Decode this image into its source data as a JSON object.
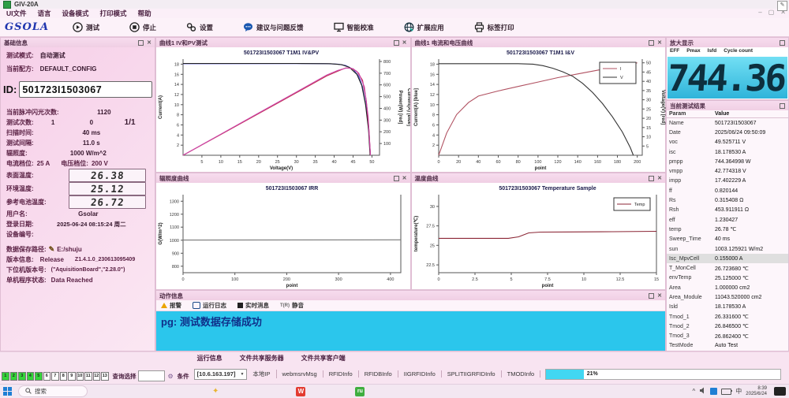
{
  "window": {
    "title": "GIV-20A",
    "controls": [
      "–",
      "▢",
      "✕"
    ]
  },
  "menu": {
    "items": [
      "UI文件",
      "语言",
      "设备模式",
      "打印模式",
      "帮助"
    ]
  },
  "toolbar": {
    "brand": "GSOLA",
    "buttons": [
      {
        "label": "测试"
      },
      {
        "label": "停止"
      },
      {
        "label": "设置"
      },
      {
        "label": "建议与问题反馈"
      },
      {
        "label": "智能校准"
      },
      {
        "label": "扩展应用"
      },
      {
        "label": "标签打印"
      }
    ]
  },
  "left": {
    "title": "基础信息",
    "test_mode": {
      "label": "测试模式:",
      "value": "自动测试"
    },
    "config": {
      "label": "当前配方:",
      "value": "DEFAULT_CONFIG"
    },
    "id": {
      "label": "ID:",
      "value": "501723I1503067"
    },
    "flash_count": {
      "label": "当前脉冲闪光次数:",
      "value": "1120"
    },
    "test_count": {
      "label": "测试次数:",
      "v1": "1",
      "v2": "0",
      "v3": "1/1"
    },
    "scan_time": {
      "label": "扫描时间:",
      "value": "40 ms"
    },
    "interval": {
      "label": "测试间隔:",
      "value": "11.0 s"
    },
    "irradiance": {
      "label": "辐照度:",
      "value": "1000 W/m^2"
    },
    "current_range": {
      "label": "电流档位:",
      "value": "25 A"
    },
    "voltage_range": {
      "label": "电压档位:",
      "value": "200 V"
    },
    "surface_temp": {
      "label": "表面温度:",
      "value": "26.38"
    },
    "ambient_temp": {
      "label": "环境温度:",
      "value": "25.12"
    },
    "ref_cell_temp": {
      "label": "参考电池温度:",
      "value": "26.72"
    },
    "username": {
      "label": "用户名:",
      "value": "Gsolar"
    },
    "login_date": {
      "label": "登录日期:",
      "value": "2025-06-24 08:15:24 周二"
    },
    "device_no": {
      "label": "设备编号:",
      "value": ""
    },
    "save_path": {
      "label": "数据保存路径:",
      "value": "E:/shuju"
    },
    "version": {
      "label": "版本信息:",
      "value": "Release",
      "value2": "Z1.4.1.0_230613095409"
    },
    "firmware": {
      "label": "下位机版本号:",
      "value": "(\"AquisitionBoard\",\"2.28.0\")"
    },
    "status": {
      "label": "单机程序状态:",
      "value": "Data Reached"
    }
  },
  "panels": {
    "chart1": "曲线1 IV和PV测试",
    "chart2": "曲线1 电流和电压曲线",
    "chart3": "辐照度曲线",
    "chart4": "温度曲线",
    "action": "动作信息",
    "magnify": "放大显示",
    "results": "当前测试结果"
  },
  "action": {
    "tools": [
      {
        "label": "报警"
      },
      {
        "label": "运行日志"
      },
      {
        "label": "实时消息"
      },
      {
        "label": "静音"
      }
    ],
    "message": "pg: 测试数据存储成功"
  },
  "magnify": {
    "metrics": [
      "EFF",
      "Pmax",
      "Isfd",
      "Cycle count"
    ],
    "value": "744.36"
  },
  "results": {
    "col_param": "Param",
    "col_value": "Value",
    "rows": [
      {
        "p": "Name",
        "v": "501723I1503067"
      },
      {
        "p": "Date",
        "v": "2025/06/24 09:50:09"
      },
      {
        "p": "voc",
        "v": "49.525711 V"
      },
      {
        "p": "isc",
        "v": "18.178530 A"
      },
      {
        "p": "pmpp",
        "v": "744.364998 W"
      },
      {
        "p": "vmpp",
        "v": "42.774318 V"
      },
      {
        "p": "impp",
        "v": "17.402229 A"
      },
      {
        "p": "ff",
        "v": "0.820144"
      },
      {
        "p": "Rs",
        "v": "0.315408 Ω"
      },
      {
        "p": "Rsh",
        "v": "453.911911 Ω"
      },
      {
        "p": "eff",
        "v": "1.230427"
      },
      {
        "p": "temp",
        "v": "26.78 ℃"
      },
      {
        "p": "Sweep_Time",
        "v": "40 ms"
      },
      {
        "p": "sun",
        "v": "1003.125921 W/m2"
      },
      {
        "p": "Isc_MpvCell",
        "v": "0.155000 A",
        "hl": true
      },
      {
        "p": "T_MonCell",
        "v": "26.723680 ℃"
      },
      {
        "p": "envTemp",
        "v": "25.125000 ℃"
      },
      {
        "p": "Area",
        "v": "1.000000 cm2"
      },
      {
        "p": "Area_Module",
        "v": "11043.520000 cm2"
      },
      {
        "p": "Isld",
        "v": "18.178530 A"
      },
      {
        "p": "Tmod_1",
        "v": "26.331600 ℃"
      },
      {
        "p": "Tmod_2",
        "v": "26.846500 ℃"
      },
      {
        "p": "Tmod_3",
        "v": "26.862400 ℃"
      },
      {
        "p": "TestMode",
        "v": "Auto Test"
      }
    ]
  },
  "bottom": {
    "segments": [
      {
        "n": "1",
        "on": true
      },
      {
        "n": "2",
        "on": true
      },
      {
        "n": "3",
        "on": true
      },
      {
        "n": "4",
        "on": true
      },
      {
        "n": "5",
        "on": true
      },
      {
        "n": "6"
      },
      {
        "n": "7"
      },
      {
        "n": "8"
      },
      {
        "n": "9"
      },
      {
        "n": "10"
      },
      {
        "n": "11"
      },
      {
        "n": "12"
      },
      {
        "n": "13"
      }
    ],
    "search_label": "查询选择",
    "condition_label": "条件",
    "tabs": [
      "运行信息",
      "文件共享服务器",
      "文件共享客户端"
    ],
    "ip": "[10.6.163.197]",
    "items": [
      "本地IP",
      "webmsrvMsg",
      "RFIDInfo",
      "RFIDBInfo",
      "IIGRFIDInfo",
      "SPLITIIGRFIDInfo",
      "TMODInfo"
    ],
    "progress_label": "21%"
  },
  "taskbar": {
    "search": "搜索",
    "wps": "W",
    "ru": "ru",
    "lang": "中",
    "time": "8:39",
    "date": "2025/6/24"
  },
  "chart_data": [
    {
      "type": "line",
      "title": "501723I1503067 T1M1 IV&PV",
      "xlabel": "Voltage(V)",
      "ylabel_left": "Current(A)",
      "ylabel_right": "Power(W) [red]",
      "ylabel_far_right": "Current(A) [blue]",
      "xlim": [
        0,
        52
      ],
      "x_ticks": [
        5,
        10,
        15,
        20,
        25,
        30,
        35,
        40,
        45,
        50
      ],
      "ylim_left": [
        0,
        19
      ],
      "y_ticks_left": [
        2,
        4,
        6,
        8,
        10,
        12,
        14,
        16,
        18
      ],
      "ylim_right": [
        0,
        820
      ],
      "y_ticks_right": [
        100,
        200,
        300,
        400,
        500,
        600,
        700,
        800
      ],
      "series": [
        {
          "name": "I blue",
          "color": "#4646cc",
          "axis": "left",
          "points": [
            [
              0,
              18.1
            ],
            [
              30,
              18.12
            ],
            [
              38,
              18.1
            ],
            [
              41,
              18.0
            ],
            [
              43,
              17.75
            ],
            [
              45,
              17.0
            ],
            [
              46.5,
              15.6
            ],
            [
              47.5,
              13.5
            ],
            [
              48.5,
              9.5
            ],
            [
              49.2,
              4.5
            ],
            [
              49.6,
              0
            ]
          ]
        },
        {
          "name": "I black",
          "color": "#222222",
          "axis": "left",
          "points": [
            [
              0,
              18.15
            ],
            [
              30,
              18.15
            ],
            [
              39,
              18.1
            ],
            [
              42,
              17.9
            ],
            [
              44,
              17.4
            ],
            [
              46,
              16.0
            ],
            [
              47.3,
              13.8
            ],
            [
              48.3,
              10
            ],
            [
              49.1,
              5
            ],
            [
              49.5,
              0
            ]
          ]
        },
        {
          "name": "P red",
          "color": "#c03050",
          "axis": "right",
          "points": [
            [
              0,
              0
            ],
            [
              10,
              177
            ],
            [
              20,
              355
            ],
            [
              30,
              533
            ],
            [
              38,
              676
            ],
            [
              41,
              717
            ],
            [
              43,
              744
            ],
            [
              44.5,
              742
            ],
            [
              46,
              715
            ],
            [
              47.5,
              640
            ],
            [
              48.5,
              470
            ],
            [
              49.2,
              220
            ],
            [
              49.6,
              0
            ]
          ]
        },
        {
          "name": "P magenta",
          "color": "#cc44a8",
          "axis": "right",
          "points": [
            [
              0,
              0
            ],
            [
              10,
              180
            ],
            [
              20,
              360
            ],
            [
              30,
              540
            ],
            [
              38,
              684
            ],
            [
              41,
              724
            ],
            [
              43.3,
              745
            ],
            [
              45,
              738
            ],
            [
              46.5,
              700
            ],
            [
              48,
              585
            ],
            [
              49,
              330
            ],
            [
              49.6,
              0
            ]
          ]
        }
      ]
    },
    {
      "type": "line",
      "title": "501723I1503067 T1M1 I&V",
      "xlabel": "point",
      "ylabel_left": "Current(A) [blue]",
      "ylabel_right": "Voltage(V) [red]",
      "xlim": [
        0,
        205
      ],
      "x_ticks": [
        0,
        20,
        40,
        60,
        80,
        100,
        120,
        140,
        160,
        180,
        200
      ],
      "ylim_left": [
        0,
        19
      ],
      "y_ticks_left": [
        2,
        4,
        6,
        8,
        10,
        12,
        14,
        16,
        18
      ],
      "ylim_right": [
        0,
        52
      ],
      "y_ticks_right": [
        5,
        10,
        15,
        20,
        25,
        30,
        35,
        40,
        45,
        50
      ],
      "legend": [
        {
          "label": "I",
          "color": "#b05060"
        },
        {
          "label": "V",
          "color": "#333333"
        }
      ],
      "series": [
        {
          "name": "V",
          "color": "#b05060",
          "axis": "right",
          "points": [
            [
              0,
              0
            ],
            [
              8,
              12
            ],
            [
              18,
              22
            ],
            [
              30,
              28.5
            ],
            [
              40,
              32
            ],
            [
              60,
              34.8
            ],
            [
              80,
              37.2
            ],
            [
              100,
              39.6
            ],
            [
              120,
              42
            ],
            [
              140,
              44
            ],
            [
              160,
              46
            ],
            [
              180,
              48
            ],
            [
              200,
              50
            ]
          ]
        },
        {
          "name": "I",
          "color": "#333333",
          "axis": "left",
          "points": [
            [
              0,
              18.1
            ],
            [
              80,
              18.1
            ],
            [
              95,
              18.0
            ],
            [
              105,
              17.7
            ],
            [
              115,
              17.2
            ],
            [
              125,
              16.5
            ],
            [
              135,
              15.6
            ],
            [
              145,
              14.2
            ],
            [
              155,
              12.4
            ],
            [
              165,
              10.2
            ],
            [
              175,
              7.6
            ],
            [
              185,
              4.6
            ],
            [
              193,
              1.5
            ],
            [
              196,
              0
            ]
          ]
        }
      ]
    },
    {
      "type": "line",
      "title": "501723I1503067 IRR",
      "xlabel": "point",
      "ylabel_left": "G(W/m^2)",
      "xlim": [
        0,
        420
      ],
      "x_ticks": [
        0,
        100,
        200,
        300,
        400
      ],
      "ylim_left": [
        750,
        1350
      ],
      "y_ticks_left": [
        800,
        900,
        1000,
        1100,
        1200,
        1300
      ],
      "series": [
        {
          "name": "G",
          "color": "#777777",
          "axis": "left",
          "points": [
            [
              0,
              1001
            ],
            [
              420,
              1003
            ]
          ]
        }
      ]
    },
    {
      "type": "line",
      "title": "501723I1503067 Temperature Sample",
      "xlabel": "point",
      "ylabel_left": "temperature(℃)",
      "xlim": [
        0,
        15
      ],
      "x_ticks": [
        0,
        2.5,
        5,
        7.5,
        10,
        12.5,
        15
      ],
      "ylim_left": [
        21.5,
        31.5
      ],
      "y_ticks_left": [
        22.5,
        25,
        27.5,
        30
      ],
      "legend": [
        {
          "label": "Temp",
          "color": "#8b2635"
        }
      ],
      "series": [
        {
          "name": "Temp",
          "color": "#8b2635",
          "axis": "left",
          "points": [
            [
              0,
              25.9
            ],
            [
              4.8,
              25.9
            ],
            [
              5.5,
              26.1
            ],
            [
              6.2,
              26.6
            ],
            [
              7,
              26.7
            ],
            [
              9,
              26.72
            ],
            [
              12,
              26.75
            ],
            [
              15,
              26.8
            ]
          ]
        }
      ]
    }
  ]
}
